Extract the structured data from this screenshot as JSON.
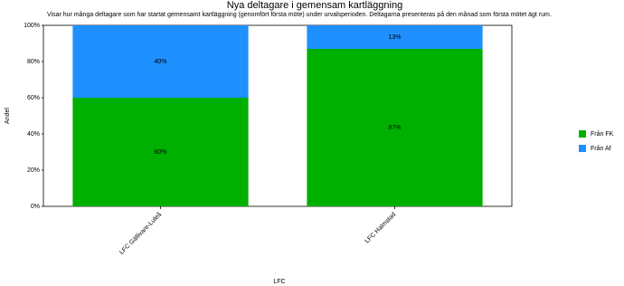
{
  "chart_data": {
    "type": "stacked_bar",
    "title": "Nya deltagare i gemensam kartläggning",
    "subtitle": "Visar hur många deltagare som har startat gemensamt kartläggning (genomfört första möte) under urvalsperioden. Deltagarna presenteras på den månad som första mötet ägt rum.",
    "x_label": "LFC",
    "y_label": "Andel",
    "categories": [
      "LFC Gällivare-Luleå",
      "LFC Halmstad"
    ],
    "series": [
      {
        "name": "Från FK",
        "color": "#00b000",
        "values": [
          60,
          87
        ],
        "value_labels": [
          "60%",
          "87%"
        ]
      },
      {
        "name": "Från Af",
        "color": "#1e90ff",
        "values": [
          40,
          13
        ],
        "value_labels": [
          "40%",
          "13%"
        ]
      }
    ],
    "ylim": [
      0,
      100
    ],
    "yticks": [
      {
        "value": 0,
        "label": "0%"
      },
      {
        "value": 20,
        "label": "20%"
      },
      {
        "value": 40,
        "label": "40%"
      },
      {
        "value": 60,
        "label": "60%"
      },
      {
        "value": 80,
        "label": "80%"
      },
      {
        "value": 100,
        "label": "100%"
      }
    ],
    "legend": "right"
  }
}
